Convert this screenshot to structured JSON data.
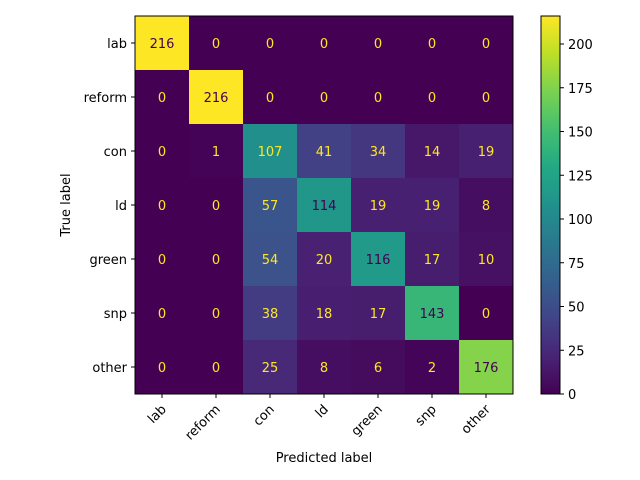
{
  "chart_data": {
    "type": "heatmap",
    "title": "",
    "xlabel": "Predicted label",
    "ylabel": "True label",
    "x_categories": [
      "lab",
      "reform",
      "con",
      "ld",
      "green",
      "snp",
      "other"
    ],
    "y_categories": [
      "lab",
      "reform",
      "con",
      "ld",
      "green",
      "snp",
      "other"
    ],
    "matrix": [
      [
        216,
        0,
        0,
        0,
        0,
        0,
        0
      ],
      [
        0,
        216,
        0,
        0,
        0,
        0,
        0
      ],
      [
        0,
        1,
        107,
        41,
        34,
        14,
        19
      ],
      [
        0,
        0,
        57,
        114,
        19,
        19,
        8
      ],
      [
        0,
        0,
        54,
        20,
        116,
        17,
        10
      ],
      [
        0,
        0,
        38,
        18,
        17,
        143,
        0
      ],
      [
        0,
        0,
        25,
        8,
        6,
        2,
        176
      ]
    ],
    "colormap": "viridis",
    "vmin": 0,
    "vmax": 216,
    "colorbar_ticks": [
      0,
      25,
      50,
      75,
      100,
      125,
      150,
      175,
      200
    ],
    "grid": false,
    "text_colors": {
      "dark_cell": "#fde725",
      "light_cell": "#440154"
    }
  }
}
